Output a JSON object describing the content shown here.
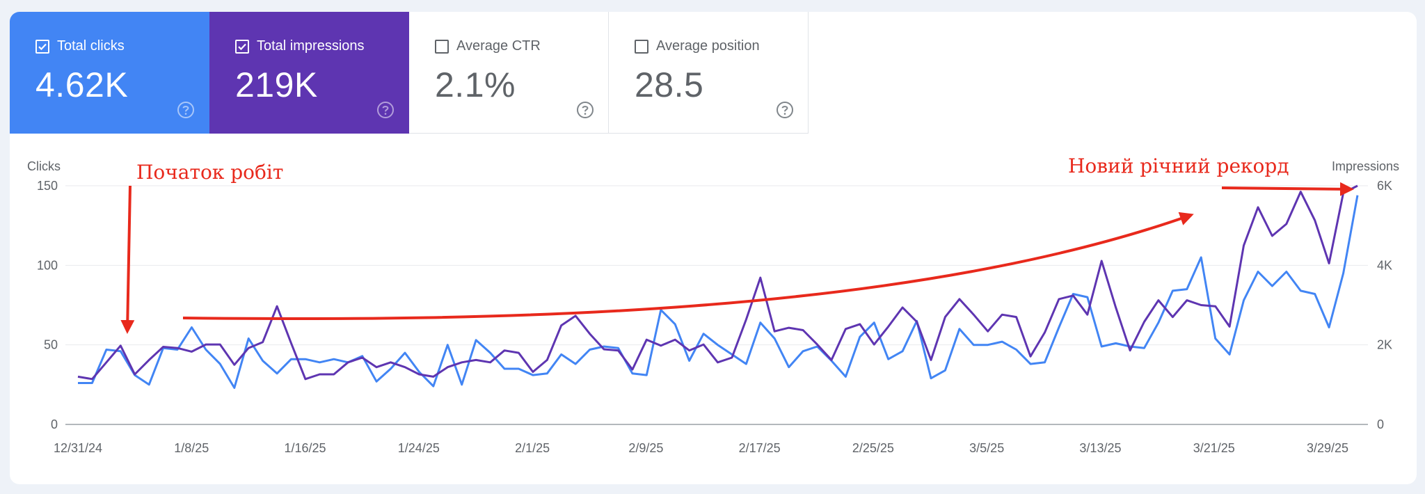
{
  "cards": [
    {
      "label": "Total clicks",
      "value": "4.62K",
      "checked": true,
      "color": "#4285f4"
    },
    {
      "label": "Total impressions",
      "value": "219K",
      "checked": true,
      "color": "#5e35b1"
    },
    {
      "label": "Average CTR",
      "value": "2.1%",
      "checked": false
    },
    {
      "label": "Average position",
      "value": "28.5",
      "checked": false
    }
  ],
  "chart_data": {
    "type": "line",
    "x_tick_labels": [
      "12/31/24",
      "1/8/25",
      "1/16/25",
      "1/24/25",
      "2/1/25",
      "2/9/25",
      "2/17/25",
      "2/25/25",
      "3/5/25",
      "3/13/25",
      "3/21/25",
      "3/29/25"
    ],
    "y_left": {
      "label": "Clicks",
      "range": [
        0,
        150
      ],
      "ticks": [
        "0",
        "50",
        "100",
        "150"
      ]
    },
    "y_right": {
      "label": "Impressions",
      "range": [
        0,
        6000
      ],
      "ticks": [
        "0",
        "2K",
        "4K",
        "6K"
      ]
    },
    "grid": true,
    "series": [
      {
        "name": "Total clicks",
        "axis": "left",
        "color": "#4285f4",
        "values": [
          26,
          26,
          47,
          46,
          31,
          25,
          48,
          47,
          61,
          47,
          38,
          23,
          54,
          40,
          32,
          41,
          41,
          39,
          41,
          39,
          43,
          27,
          35,
          45,
          33,
          24,
          50,
          25,
          53,
          45,
          35,
          35,
          31,
          32,
          44,
          38,
          47,
          49,
          48,
          32,
          31,
          72,
          63,
          40,
          57,
          50,
          44,
          38,
          64,
          54,
          36,
          46,
          49,
          40,
          30,
          55,
          64,
          41,
          46,
          65,
          29,
          34,
          60,
          50,
          50,
          52,
          47,
          38,
          39,
          61,
          82,
          80,
          49,
          51,
          49,
          48,
          64,
          84,
          85,
          105,
          54,
          44,
          78,
          96,
          87,
          96,
          84,
          82,
          61,
          95,
          144
        ]
      },
      {
        "name": "Total impressions",
        "axis": "right",
        "color": "#5e35b1",
        "values": [
          1200,
          1140,
          1560,
          1980,
          1260,
          1620,
          1950,
          1920,
          1830,
          2010,
          2010,
          1500,
          1920,
          2070,
          2970,
          2040,
          1140,
          1260,
          1260,
          1560,
          1680,
          1440,
          1560,
          1440,
          1260,
          1200,
          1440,
          1560,
          1620,
          1560,
          1860,
          1800,
          1320,
          1620,
          2490,
          2730,
          2280,
          1890,
          1860,
          1380,
          2130,
          1980,
          2130,
          1860,
          2010,
          1560,
          1680,
          2640,
          3690,
          2340,
          2430,
          2370,
          2010,
          1620,
          2400,
          2520,
          2010,
          2460,
          2940,
          2580,
          1620,
          2700,
          3150,
          2760,
          2340,
          2760,
          2700,
          1710,
          2310,
          3150,
          3240,
          2760,
          4110,
          2940,
          1860,
          2580,
          3120,
          2700,
          3120,
          3000,
          2970,
          2460,
          4500,
          5460,
          4740,
          5040,
          5850,
          5130,
          4050,
          5820,
          6000
        ]
      }
    ],
    "annotations": [
      {
        "text": "Початок робіт",
        "color": "#e8291c"
      },
      {
        "text": "Новий річний рекорд",
        "color": "#e8291c"
      }
    ]
  }
}
